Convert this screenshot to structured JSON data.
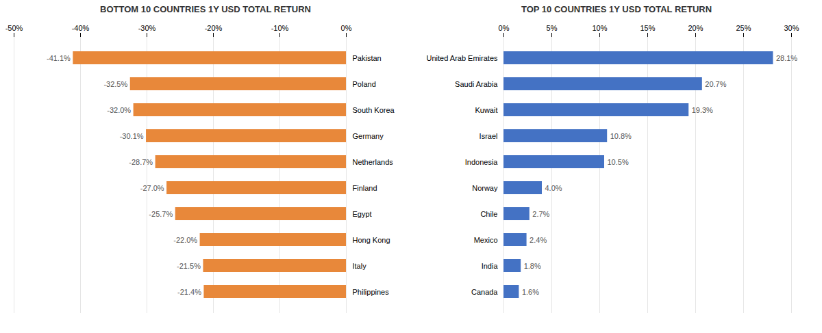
{
  "chart_data": [
    {
      "type": "bar",
      "orientation": "horizontal",
      "title": "BOTTOM 10 COUNTRIES 1Y USD TOTAL RETURN",
      "categories": [
        "Pakistan",
        "Poland",
        "South Korea",
        "Germany",
        "Netherlands",
        "Finland",
        "Egypt",
        "Hong Kong",
        "Italy",
        "Philippines"
      ],
      "values": [
        -41.1,
        -32.5,
        -32.0,
        -30.1,
        -28.7,
        -27.0,
        -25.7,
        -22.0,
        -21.5,
        -21.4
      ],
      "value_labels": [
        "-41.1%",
        "-32.5%",
        "-32.0%",
        "-30.1%",
        "-28.7%",
        "-27.0%",
        "-25.7%",
        "-22.0%",
        "-21.5%",
        "-21.4%"
      ],
      "data_labels": true,
      "color": "#E8883A",
      "xlim": [
        -50,
        0
      ],
      "xticks": [
        {
          "value": -50,
          "label": "-50%"
        },
        {
          "value": -40,
          "label": "-40%"
        },
        {
          "value": -30,
          "label": "-30%"
        },
        {
          "value": -20,
          "label": "-20%"
        },
        {
          "value": -10,
          "label": "-10%"
        },
        {
          "value": 0,
          "label": "0%"
        }
      ],
      "grid": true
    },
    {
      "type": "bar",
      "orientation": "horizontal",
      "title": "TOP 10 COUNTRIES 1Y USD TOTAL RETURN",
      "categories": [
        "United Arab Emirates",
        "Saudi Arabia",
        "Kuwait",
        "Israel",
        "Indonesia",
        "Norway",
        "Chile",
        "Mexico",
        "India",
        "Canada"
      ],
      "values": [
        28.1,
        20.7,
        19.3,
        10.8,
        10.5,
        4.0,
        2.7,
        2.4,
        1.8,
        1.6
      ],
      "value_labels": [
        "28.1%",
        "20.7%",
        "19.3%",
        "10.8%",
        "10.5%",
        "4.0%",
        "2.7%",
        "2.4%",
        "1.8%",
        "1.6%"
      ],
      "data_labels": true,
      "color": "#4472C4",
      "xlim": [
        0,
        30
      ],
      "xticks": [
        {
          "value": 0,
          "label": "0%"
        },
        {
          "value": 5,
          "label": "5%"
        },
        {
          "value": 10,
          "label": "10%"
        },
        {
          "value": 15,
          "label": "15%"
        },
        {
          "value": 20,
          "label": "20%"
        },
        {
          "value": 25,
          "label": "25%"
        },
        {
          "value": 30,
          "label": "30%"
        }
      ],
      "grid": true
    }
  ]
}
